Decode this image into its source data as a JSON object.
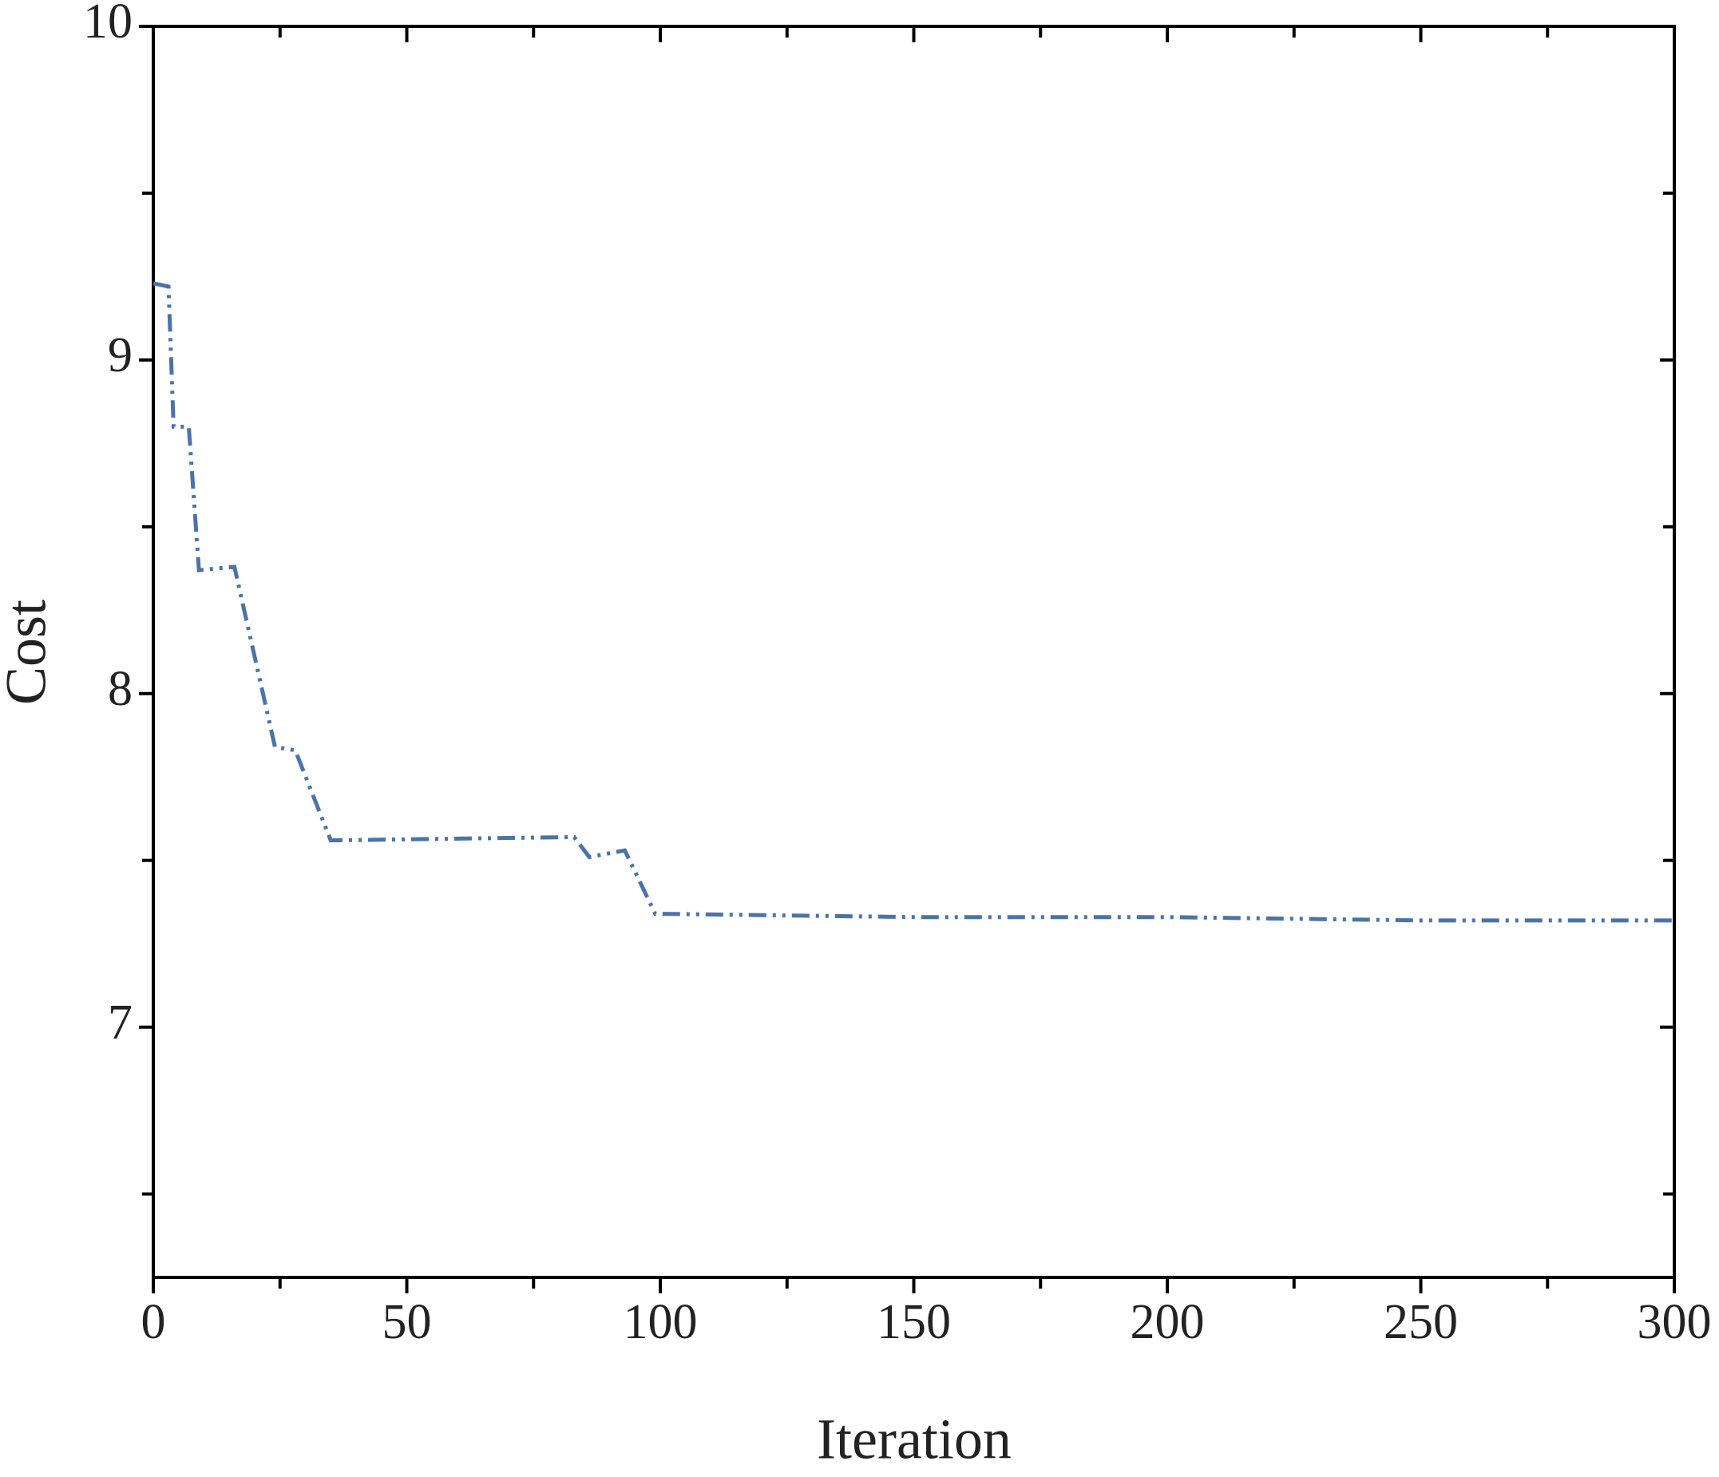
{
  "chart_data": {
    "type": "line",
    "x_label": "Iteration",
    "y_label": "Cost",
    "x": [
      0,
      3,
      4,
      7,
      9,
      16,
      24,
      28,
      35,
      83,
      86,
      93,
      99,
      150,
      200,
      250,
      300
    ],
    "series": [
      {
        "color": "#4a74a8",
        "dash": "dash-dot-dot",
        "values": [
          9.23,
          9.22,
          8.8,
          8.8,
          8.37,
          8.38,
          7.84,
          7.83,
          7.56,
          7.57,
          7.51,
          7.53,
          7.34,
          7.33,
          7.33,
          7.32,
          7.32
        ]
      }
    ],
    "xlim": [
      0,
      300
    ],
    "xticks": [
      0,
      50,
      100,
      150,
      200,
      250,
      300
    ],
    "xminorticks": [
      25,
      75,
      125,
      175,
      225,
      275
    ],
    "ylim": [
      6.25,
      10
    ],
    "yticks": [
      7,
      8,
      9,
      10
    ],
    "yminorticks": [
      6.5,
      7.5,
      8.5,
      9.5
    ],
    "grid": false
  }
}
